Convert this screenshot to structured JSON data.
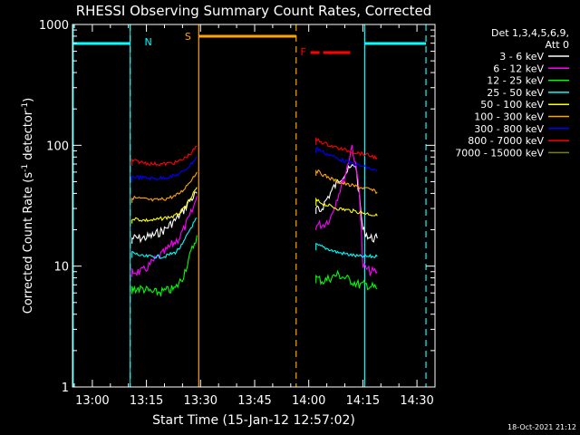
{
  "chart_data": {
    "type": "line",
    "title": "RHESSI Observing Summary Count Rates, Corrected",
    "xlabel": "Start Time (15-Jan-12 12:57:02)",
    "ylabel": "Corrected Count Rate (s",
    "ylabel_sup1": "-1",
    "ylabel_mid": " detector",
    "ylabel_sup2": "-1",
    "ylabel_end": ")",
    "y_scale": "log",
    "ylim": [
      1,
      1000
    ],
    "xlim_minutes": [
      -5.5,
      95
    ],
    "x_ticks": [
      {
        "m": 0,
        "label": "13:00"
      },
      {
        "m": 15,
        "label": "13:15"
      },
      {
        "m": 30,
        "label": "13:30"
      },
      {
        "m": 45,
        "label": "13:45"
      },
      {
        "m": 60,
        "label": "14:00"
      },
      {
        "m": 75,
        "label": "14:15"
      },
      {
        "m": 90,
        "label": "14:30"
      }
    ],
    "y_ticks": [
      {
        "v": 1,
        "label": "1"
      },
      {
        "v": 10,
        "label": "10"
      },
      {
        "v": 100,
        "label": "100"
      },
      {
        "v": 1000,
        "label": "1000"
      }
    ],
    "legend_header": [
      "Det 1,3,4,5,6,9,",
      "Att 0"
    ],
    "timestamp": "18-Oct-2021 21:12",
    "series": [
      {
        "name": "3 - 6 keV",
        "color": "#ffffff",
        "values": [
          [
            11,
            17
          ],
          [
            14,
            17
          ],
          [
            17,
            18
          ],
          [
            20,
            20
          ],
          [
            23,
            24
          ],
          [
            25,
            28
          ],
          [
            27,
            35
          ],
          [
            29,
            40
          ],
          [
            62,
            30
          ],
          [
            63,
            28
          ],
          [
            65,
            36
          ],
          [
            67,
            45
          ],
          [
            69,
            55
          ],
          [
            71,
            62
          ],
          [
            73,
            70
          ],
          [
            75,
            20
          ],
          [
            77,
            17
          ],
          [
            79,
            17
          ]
        ]
      },
      {
        "name": "6 - 12 keV",
        "color": "#ff00ff",
        "values": [
          [
            11,
            9
          ],
          [
            14,
            9
          ],
          [
            17,
            11
          ],
          [
            20,
            13
          ],
          [
            22,
            15
          ],
          [
            24,
            17
          ],
          [
            26,
            22
          ],
          [
            28,
            30
          ],
          [
            29,
            38
          ],
          [
            62,
            22
          ],
          [
            64,
            22
          ],
          [
            66,
            25
          ],
          [
            68,
            38
          ],
          [
            70,
            55
          ],
          [
            72,
            100
          ],
          [
            74,
            45
          ],
          [
            75,
            10
          ],
          [
            77,
            9
          ],
          [
            79,
            9
          ]
        ]
      },
      {
        "name": "12 - 25 keV",
        "color": "#00ff00",
        "values": [
          [
            11,
            6.5
          ],
          [
            14,
            6.5
          ],
          [
            17,
            6
          ],
          [
            20,
            6.2
          ],
          [
            23,
            6.5
          ],
          [
            25,
            8
          ],
          [
            27,
            12
          ],
          [
            29,
            18
          ],
          [
            62,
            8
          ],
          [
            64,
            7.5
          ],
          [
            66,
            8
          ],
          [
            68,
            8.5
          ],
          [
            70,
            8
          ],
          [
            72,
            7.5
          ],
          [
            74,
            7
          ],
          [
            76,
            7
          ],
          [
            79,
            6.5
          ]
        ]
      },
      {
        "name": "25 - 50 keV",
        "color": "#00ffff",
        "values": [
          [
            11,
            13
          ],
          [
            14,
            12
          ],
          [
            17,
            12
          ],
          [
            20,
            12
          ],
          [
            23,
            13
          ],
          [
            25,
            15
          ],
          [
            27,
            20
          ],
          [
            29,
            25
          ],
          [
            62,
            15
          ],
          [
            65,
            14
          ],
          [
            68,
            13
          ],
          [
            71,
            12.5
          ],
          [
            74,
            12
          ],
          [
            77,
            12
          ],
          [
            79,
            12
          ]
        ]
      },
      {
        "name": "50 - 100 keV",
        "color": "#ffff00",
        "values": [
          [
            11,
            25
          ],
          [
            14,
            24
          ],
          [
            17,
            24
          ],
          [
            20,
            25
          ],
          [
            23,
            26
          ],
          [
            25,
            29
          ],
          [
            27,
            35
          ],
          [
            29,
            45
          ],
          [
            62,
            35
          ],
          [
            65,
            32
          ],
          [
            68,
            30
          ],
          [
            71,
            29
          ],
          [
            74,
            28
          ],
          [
            77,
            27
          ],
          [
            79,
            26
          ]
        ]
      },
      {
        "name": "100 - 300 keV",
        "color": "#ffa500",
        "values": [
          [
            11,
            37
          ],
          [
            14,
            36
          ],
          [
            17,
            35
          ],
          [
            20,
            36
          ],
          [
            23,
            38
          ],
          [
            25,
            42
          ],
          [
            27,
            50
          ],
          [
            29,
            60
          ],
          [
            62,
            62
          ],
          [
            65,
            55
          ],
          [
            68,
            50
          ],
          [
            71,
            47
          ],
          [
            74,
            45
          ],
          [
            77,
            43
          ],
          [
            79,
            41
          ]
        ]
      },
      {
        "name": "300 - 800 keV",
        "color": "#0000ff",
        "values": [
          [
            11,
            55
          ],
          [
            14,
            54
          ],
          [
            17,
            53
          ],
          [
            20,
            54
          ],
          [
            23,
            56
          ],
          [
            25,
            60
          ],
          [
            27,
            68
          ],
          [
            29,
            80
          ],
          [
            62,
            95
          ],
          [
            65,
            85
          ],
          [
            68,
            78
          ],
          [
            71,
            72
          ],
          [
            74,
            68
          ],
          [
            77,
            64
          ],
          [
            79,
            61
          ]
        ]
      },
      {
        "name": "800 - 7000 keV",
        "color": "#ff0000",
        "values": [
          [
            11,
            75
          ],
          [
            14,
            72
          ],
          [
            17,
            70
          ],
          [
            20,
            70
          ],
          [
            23,
            72
          ],
          [
            25,
            76
          ],
          [
            27,
            84
          ],
          [
            29,
            98
          ],
          [
            62,
            112
          ],
          [
            65,
            102
          ],
          [
            68,
            95
          ],
          [
            71,
            90
          ],
          [
            74,
            86
          ],
          [
            77,
            82
          ],
          [
            79,
            79
          ]
        ]
      },
      {
        "name": "7000 - 15000 keV",
        "color": "#808000",
        "values": []
      }
    ],
    "annotations": [
      {
        "label": "N",
        "color": "#00ffff",
        "at_m": 15.5
      },
      {
        "label": "S",
        "color": "#ffa500",
        "at_m": 26.5
      },
      {
        "label": "F",
        "color": "#ff0000",
        "at_m": 58.5
      }
    ],
    "night_intervals": [
      [
        -5.5,
        10.5
      ],
      [
        75.5,
        92.5
      ]
    ],
    "saa_interval": [
      29.5,
      56.5
    ],
    "flare_interval": [
      60.5,
      71.5
    ]
  }
}
